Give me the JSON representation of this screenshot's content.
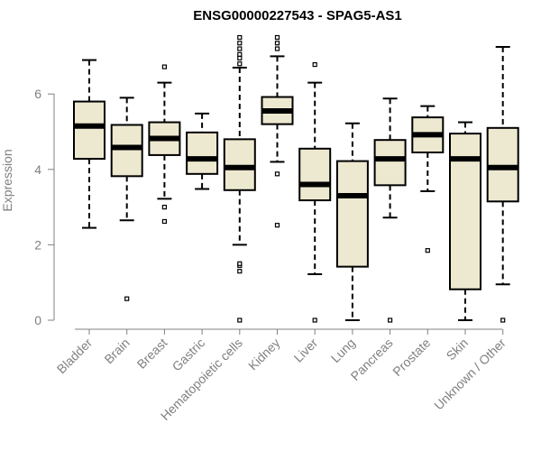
{
  "chart_data": {
    "type": "boxplot",
    "title": "ENSG00000227543 - SPAG5-AS1",
    "xlabel": "",
    "ylabel": "Expression",
    "ylim": [
      0,
      7.6
    ],
    "yticks": [
      0,
      2,
      4,
      6
    ],
    "box_fill": "#ede8d0",
    "categories": [
      "Bladder",
      "Brain",
      "Breast",
      "Gastric",
      "Hematopoietic cells",
      "Kidney",
      "Liver",
      "Lung",
      "Pancreas",
      "Prostate",
      "Skin",
      "Unknown / Other"
    ],
    "boxes": [
      {
        "category": "Bladder",
        "whisker_low": 2.45,
        "q1": 4.28,
        "median": 5.15,
        "q3": 5.8,
        "whisker_high": 6.9,
        "outliers": []
      },
      {
        "category": "Brain",
        "whisker_low": 2.65,
        "q1": 3.82,
        "median": 4.58,
        "q3": 5.18,
        "whisker_high": 5.9,
        "outliers": [
          0.57
        ]
      },
      {
        "category": "Breast",
        "whisker_low": 3.22,
        "q1": 4.38,
        "median": 4.82,
        "q3": 5.25,
        "whisker_high": 6.3,
        "outliers": [
          3.0,
          2.62,
          6.72
        ]
      },
      {
        "category": "Gastric",
        "whisker_low": 3.48,
        "q1": 3.88,
        "median": 4.28,
        "q3": 4.98,
        "whisker_high": 5.48,
        "outliers": []
      },
      {
        "category": "Hematopoietic cells",
        "whisker_low": 2.0,
        "q1": 3.45,
        "median": 4.05,
        "q3": 4.8,
        "whisker_high": 6.7,
        "outliers": [
          0.0,
          1.3,
          1.45,
          1.5,
          6.8,
          6.95,
          7.05,
          7.2,
          7.35,
          7.5
        ]
      },
      {
        "category": "Kidney",
        "whisker_low": 4.2,
        "q1": 5.2,
        "median": 5.55,
        "q3": 5.92,
        "whisker_high": 7.0,
        "outliers": [
          3.88,
          2.52,
          7.2,
          7.35,
          7.5
        ]
      },
      {
        "category": "Liver",
        "whisker_low": 1.22,
        "q1": 3.18,
        "median": 3.6,
        "q3": 4.55,
        "whisker_high": 6.3,
        "outliers": [
          0.0,
          6.78
        ]
      },
      {
        "category": "Lung",
        "whisker_low": 0.0,
        "q1": 1.42,
        "median": 3.3,
        "q3": 4.22,
        "whisker_high": 5.22,
        "outliers": []
      },
      {
        "category": "Pancreas",
        "whisker_low": 2.72,
        "q1": 3.58,
        "median": 4.28,
        "q3": 4.78,
        "whisker_high": 5.88,
        "outliers": [
          0.0
        ]
      },
      {
        "category": "Prostate",
        "whisker_low": 3.42,
        "q1": 4.45,
        "median": 4.92,
        "q3": 5.38,
        "whisker_high": 5.68,
        "outliers": [
          1.85
        ]
      },
      {
        "category": "Skin",
        "whisker_low": 0.0,
        "q1": 0.82,
        "median": 4.28,
        "q3": 4.95,
        "whisker_high": 5.25,
        "outliers": []
      },
      {
        "category": "Unknown / Other",
        "whisker_low": 0.95,
        "q1": 3.15,
        "median": 4.05,
        "q3": 5.1,
        "whisker_high": 7.25,
        "outliers": [
          0.0
        ]
      }
    ]
  }
}
